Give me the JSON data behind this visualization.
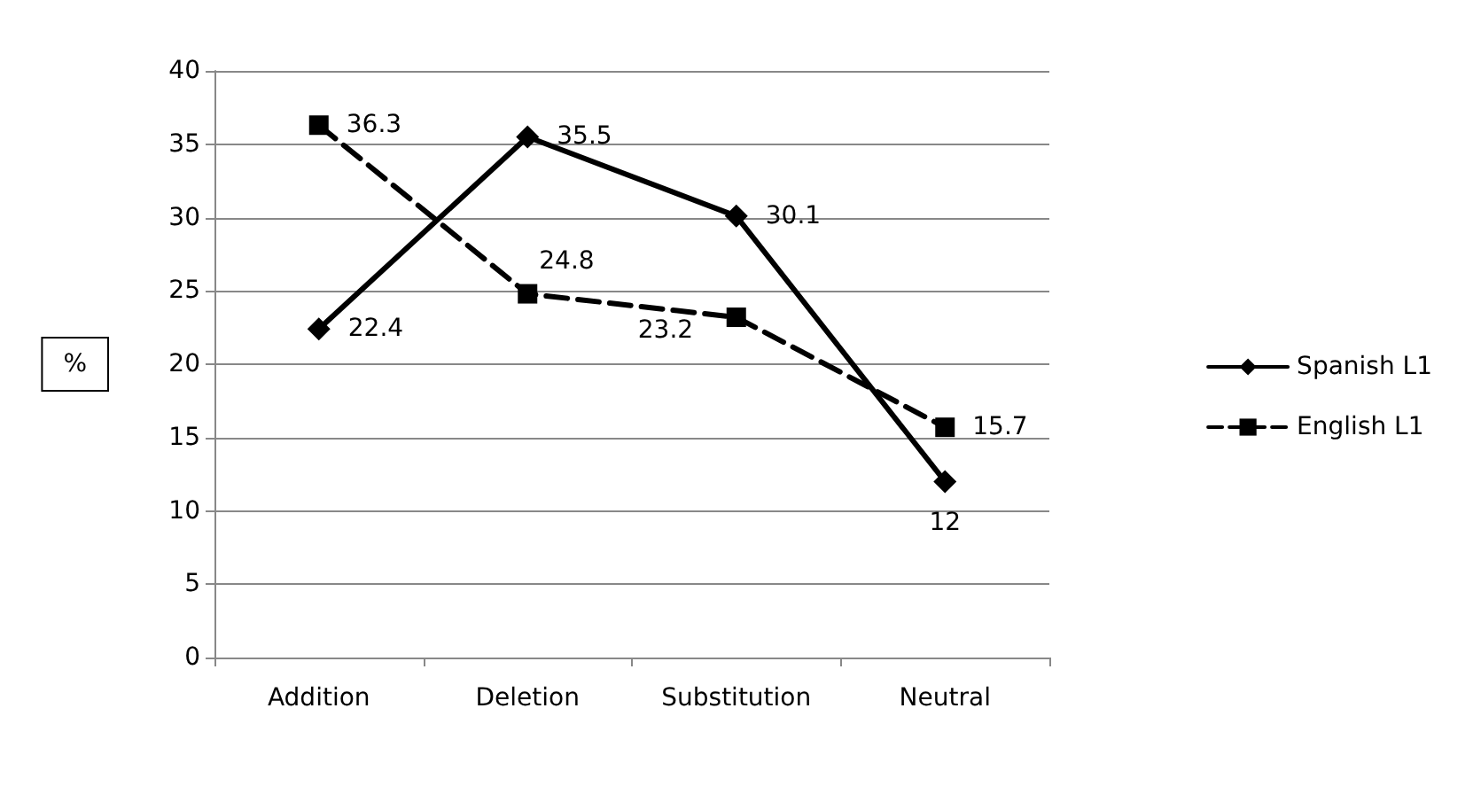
{
  "chart_data": {
    "type": "line",
    "ylabel": "%",
    "categories": [
      "Addition",
      "Deletion",
      "Substitution",
      "Neutral"
    ],
    "series": [
      {
        "name": "Spanish L1",
        "color": "#000000",
        "values": [
          22.4,
          35.5,
          30.1,
          12
        ],
        "marker": "diamond",
        "line_style": "solid"
      },
      {
        "name": "English L1",
        "color": "#000000",
        "values": [
          36.3,
          24.8,
          23.2,
          15.7
        ],
        "marker": "square",
        "line_style": "dashed"
      }
    ],
    "ylim": [
      0,
      40
    ],
    "yticks": [
      0,
      5,
      10,
      15,
      20,
      25,
      30,
      35,
      40
    ],
    "grid": "y",
    "legend": "right",
    "data_labels": true
  }
}
